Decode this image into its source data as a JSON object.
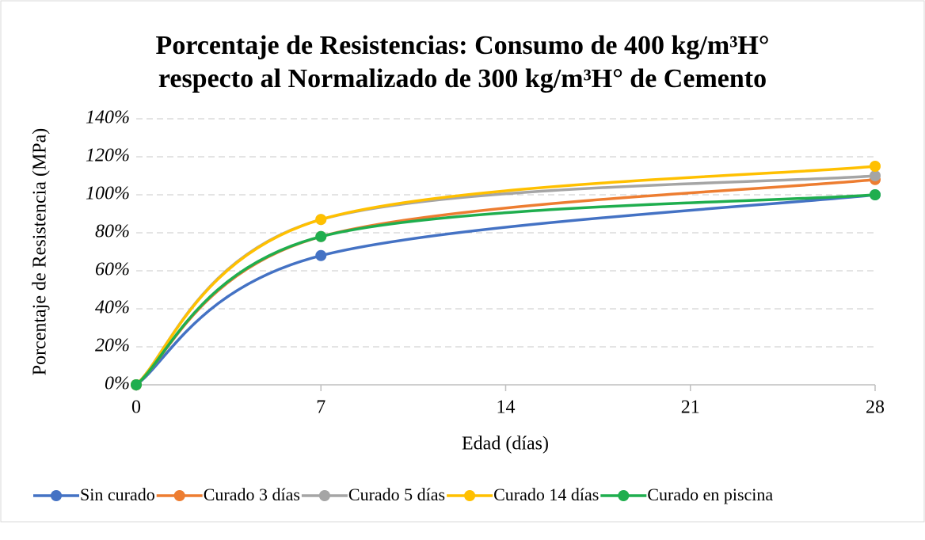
{
  "chart_data": {
    "type": "line",
    "title": [
      "Porcentaje de Resistencias: Consumo de 400 kg/m³H°",
      "respecto al Normalizado de 300 kg/m³H° de Cemento"
    ],
    "x_label": "Edad (días)",
    "y_label": "Porcentaje de Resistencia (MPa)",
    "x": [
      0,
      7,
      28
    ],
    "series": [
      {
        "name": "Sin curado",
        "color": "#4472c4",
        "values": [
          0,
          68,
          100
        ]
      },
      {
        "name": "Curado 3 días",
        "color": "#ed7d31",
        "values": [
          0,
          78,
          108
        ]
      },
      {
        "name": "Curado 5 días",
        "color": "#a5a5a5",
        "values": [
          0,
          87,
          110
        ]
      },
      {
        "name": "Curado 14 días",
        "color": "#ffc000",
        "values": [
          0,
          87,
          115
        ]
      },
      {
        "name": "Curado en piscina",
        "color": "#1fae4e",
        "values": [
          0,
          78,
          100
        ]
      }
    ],
    "xlim": [
      0,
      28
    ],
    "xticks": [
      0,
      7,
      14,
      21,
      28
    ],
    "ylim": [
      0,
      140
    ],
    "yticks": [
      {
        "value": 0,
        "label": "0%"
      },
      {
        "value": 20,
        "label": "20%"
      },
      {
        "value": 40,
        "label": "40%"
      },
      {
        "value": 60,
        "label": "60%"
      },
      {
        "value": 80,
        "label": "80%"
      },
      {
        "value": 100,
        "label": "100%"
      },
      {
        "value": 120,
        "label": "120%"
      },
      {
        "value": 140,
        "label": "140%"
      }
    ],
    "grid": true,
    "smooth": true,
    "legend": "bottom"
  }
}
